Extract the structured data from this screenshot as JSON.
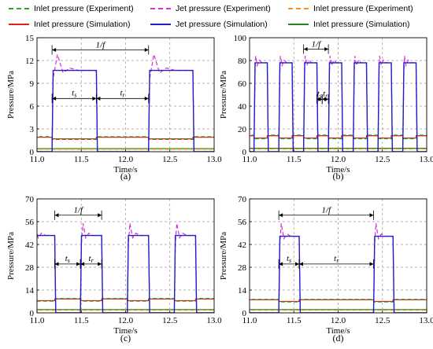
{
  "legend": [
    {
      "label": "Inlet pressure (Experiment)",
      "color": "#2ca02c",
      "dash": true
    },
    {
      "label": "Jet pressure (Experiment)",
      "color": "#d62fd6",
      "dash": true
    },
    {
      "label": "Inlet pressure (Experiment)",
      "color": "#ff8c1a",
      "dash": true
    },
    {
      "label": "Inlet pressure (Simulation)",
      "color": "#e0201b",
      "dash": false
    },
    {
      "label": "Jet pressure (Simulation)",
      "color": "#1f1fc8",
      "dash": false
    },
    {
      "label": "Inlet pressure (Simulation)",
      "color": "#1e8a1e",
      "dash": false
    }
  ],
  "chart_data": [
    {
      "type": "line",
      "panel_label": "(a)",
      "xlabel": "Time/s",
      "ylabel": "Pressure/MPa",
      "xlim": [
        11.0,
        13.0
      ],
      "ylim": [
        0,
        15
      ],
      "xticks": [
        11.0,
        11.5,
        12.0,
        12.5,
        13.0
      ],
      "yticks": [
        0,
        3,
        6,
        9,
        12,
        15
      ],
      "xtick_labels": [
        "11.0",
        "11.5",
        "12.0",
        "12.5",
        "13.0"
      ],
      "ytick_labels": [
        "0",
        "3",
        "6",
        "9",
        "12",
        "15"
      ],
      "grid": true,
      "pulses": [
        [
          11.17,
          11.67
        ],
        [
          12.26,
          12.76
        ]
      ],
      "jet_level": 10.7,
      "jet_peak": 12.8,
      "inlet1_level": 1.9,
      "inlet1_on": 1.7,
      "inlet2_level": 0.4,
      "annotations": {
        "period": "1/f",
        "ts": "t",
        "ts_sub": "s",
        "tr": "t",
        "tr_sub": "r"
      },
      "period_range": [
        11.17,
        12.26
      ],
      "period_y": 13.4,
      "ts_range": [
        11.17,
        11.67
      ],
      "tr_range": [
        11.67,
        12.26
      ],
      "t_y": 7.0
    },
    {
      "type": "line",
      "panel_label": "(b)",
      "xlabel": "Time/s",
      "ylabel": "Pressure/MPa",
      "xlim": [
        11.0,
        13.0
      ],
      "ylim": [
        0,
        100
      ],
      "xticks": [
        11.0,
        11.5,
        12.0,
        12.5,
        13.0
      ],
      "yticks": [
        0,
        20,
        40,
        60,
        80,
        100
      ],
      "xtick_labels": [
        "11.0",
        "11.5",
        "12.0",
        "12.5",
        "13.0"
      ],
      "ytick_labels": [
        "0",
        "20",
        "40",
        "60",
        "80",
        "100"
      ],
      "grid": true,
      "pulses": [
        [
          11.05,
          11.2
        ],
        [
          11.33,
          11.48
        ],
        [
          11.61,
          11.76
        ],
        [
          11.89,
          12.04
        ],
        [
          12.17,
          12.32
        ],
        [
          12.45,
          12.6
        ],
        [
          12.73,
          12.88
        ]
      ],
      "jet_level": 78,
      "jet_peak": 84,
      "inlet1_level": 14,
      "inlet1_on": 12,
      "inlet2_level": 3,
      "annotations": {
        "period": "1/f",
        "ts": "t",
        "ts_sub": "s",
        "tr": "t",
        "tr_sub": "r"
      },
      "period_range": [
        11.61,
        11.89
      ],
      "period_y": 90,
      "ts_range": [
        11.76,
        11.82
      ],
      "tr_range": [
        11.82,
        11.89
      ],
      "t_y": 46
    },
    {
      "type": "line",
      "panel_label": "(c)",
      "xlabel": "Time/s",
      "ylabel": "Pressure/MPa",
      "xlim": [
        11.0,
        13.0
      ],
      "ylim": [
        0,
        70
      ],
      "xticks": [
        11.0,
        11.5,
        12.0,
        12.5,
        13.0
      ],
      "yticks": [
        0,
        14,
        28,
        42,
        56,
        70
      ],
      "xtick_labels": [
        "11.0",
        "11.5",
        "12.0",
        "12.5",
        "13.0"
      ],
      "ytick_labels": [
        "0",
        "14",
        "28",
        "42",
        "56",
        "70"
      ],
      "grid": true,
      "pulses": [
        [
          10.95,
          11.2
        ],
        [
          11.49,
          11.73
        ],
        [
          12.02,
          12.26
        ],
        [
          12.55,
          12.79
        ]
      ],
      "jet_level": 47.5,
      "jet_peak": 55,
      "inlet1_level": 8.5,
      "inlet1_on": 7.5,
      "inlet2_level": 2,
      "annotations": {
        "period": "1/f",
        "ts": "t",
        "ts_sub": "s",
        "tr": "t",
        "tr_sub": "r"
      },
      "period_range": [
        11.2,
        11.73
      ],
      "period_y": 60,
      "ts_range": [
        11.2,
        11.49
      ],
      "tr_range": [
        11.49,
        11.73
      ],
      "t_y": 30
    },
    {
      "type": "line",
      "panel_label": "(d)",
      "xlabel": "Time/s",
      "ylabel": "Pressure/MPa",
      "xlim": [
        11.0,
        13.0
      ],
      "ylim": [
        0,
        70
      ],
      "xticks": [
        11.0,
        11.5,
        12.0,
        12.5,
        13.0
      ],
      "yticks": [
        0,
        14,
        28,
        42,
        56,
        70
      ],
      "xtick_labels": [
        "11.0",
        "11.5",
        "12.0",
        "12.5",
        "13.0"
      ],
      "ytick_labels": [
        "0",
        "14",
        "28",
        "42",
        "56",
        "70"
      ],
      "grid": true,
      "pulses": [
        [
          11.33,
          11.56
        ],
        [
          12.4,
          12.62
        ]
      ],
      "jet_level": 47,
      "jet_peak": 55,
      "inlet1_level": 8,
      "inlet1_on": 7,
      "inlet2_level": 2,
      "annotations": {
        "period": "1/f",
        "ts": "t",
        "ts_sub": "s",
        "tr": "t",
        "tr_sub": "r"
      },
      "period_range": [
        11.33,
        12.4
      ],
      "period_y": 60,
      "ts_range": [
        11.33,
        11.56
      ],
      "tr_range": [
        11.56,
        12.4
      ],
      "t_y": 30
    }
  ]
}
